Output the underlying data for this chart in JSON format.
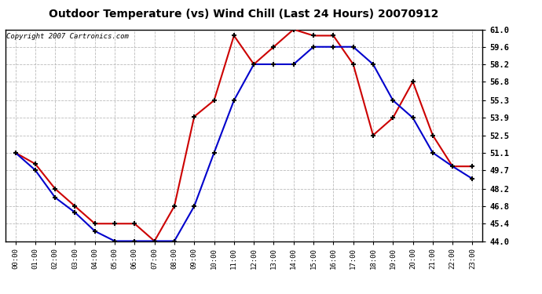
{
  "title": "Outdoor Temperature (vs) Wind Chill (Last 24 Hours) 20070912",
  "copyright_text": "Copyright 2007 Cartronics.com",
  "x_labels": [
    "00:00",
    "01:00",
    "02:00",
    "03:00",
    "04:00",
    "05:00",
    "06:00",
    "07:00",
    "08:00",
    "09:00",
    "10:00",
    "11:00",
    "12:00",
    "13:00",
    "14:00",
    "15:00",
    "16:00",
    "17:00",
    "18:00",
    "19:00",
    "20:00",
    "21:00",
    "22:00",
    "23:00"
  ],
  "y_ticks": [
    44.0,
    45.4,
    46.8,
    48.2,
    49.7,
    51.1,
    52.5,
    53.9,
    55.3,
    56.8,
    58.2,
    59.6,
    61.0
  ],
  "ylim": [
    44.0,
    61.0
  ],
  "temp_color": "#cc0000",
  "windchill_color": "#0000cc",
  "background_color": "#ffffff",
  "grid_color": "#aaaaaa",
  "outdoor_temp": [
    51.1,
    50.2,
    48.2,
    46.8,
    45.4,
    45.4,
    45.4,
    44.0,
    46.8,
    54.0,
    55.3,
    60.5,
    58.2,
    59.6,
    61.0,
    60.5,
    60.5,
    58.2,
    52.5,
    53.9,
    56.8,
    52.5,
    50.0,
    50.0
  ],
  "wind_chill": [
    51.1,
    49.7,
    47.5,
    46.3,
    44.8,
    44.0,
    44.0,
    44.0,
    44.0,
    46.8,
    51.1,
    55.3,
    58.2,
    58.2,
    58.2,
    59.6,
    59.6,
    59.6,
    58.2,
    55.3,
    53.9,
    51.1,
    50.0,
    49.0
  ],
  "figwidth": 6.9,
  "figheight": 3.75,
  "dpi": 100
}
